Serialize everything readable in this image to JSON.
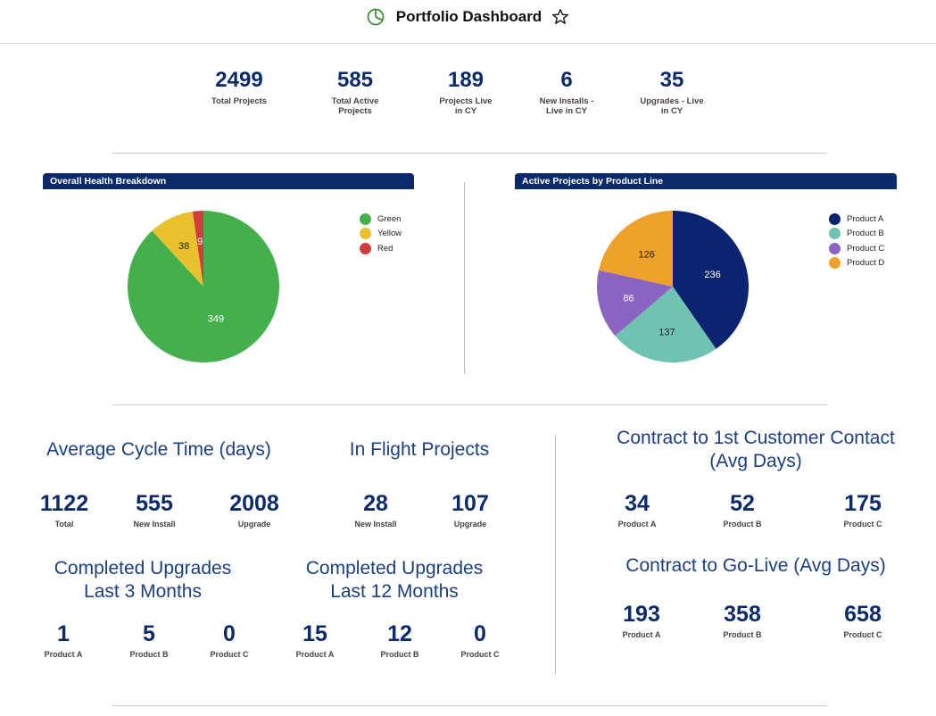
{
  "header": {
    "title": "Portfolio Dashboard"
  },
  "kpis": [
    {
      "value": "2499",
      "label": "Total Projects"
    },
    {
      "value": "585",
      "label": "Total Active Projects"
    },
    {
      "value": "189",
      "label": "Projects Live in CY"
    },
    {
      "value": "6",
      "label": "New Installs - Live in CY"
    },
    {
      "value": "35",
      "label": "Upgrades - Live in CY"
    }
  ],
  "chart_data": [
    {
      "type": "pie",
      "title": "Overall Health Breakdown",
      "categories": [
        "Green",
        "Yellow",
        "Red"
      ],
      "values": [
        349,
        38,
        9
      ],
      "colors": [
        "#44b04c",
        "#e8c22c",
        "#d13c3c"
      ],
      "legend": "right"
    },
    {
      "type": "pie",
      "title": "Active Projects by Product Line",
      "categories": [
        "Product A",
        "Product B",
        "Product C",
        "Product D"
      ],
      "values": [
        236,
        137,
        86,
        126
      ],
      "colors": [
        "#0b2470",
        "#6fc3b1",
        "#8a64c0",
        "#efa22a"
      ],
      "legend": "right"
    }
  ],
  "cycle_time": {
    "title": "Average Cycle Time (days)",
    "metrics": [
      {
        "value": "1122",
        "label": "Total"
      },
      {
        "value": "555",
        "label": "New Install"
      },
      {
        "value": "2008",
        "label": "Upgrade"
      }
    ]
  },
  "in_flight": {
    "title": "In Flight Projects",
    "metrics": [
      {
        "value": "28",
        "label": "New Install"
      },
      {
        "value": "107",
        "label": "Upgrade"
      }
    ]
  },
  "upgrades_3m": {
    "title_line1": "Completed Upgrades",
    "title_line2": "Last 3 Months",
    "metrics": [
      {
        "value": "1",
        "label": "Product A"
      },
      {
        "value": "5",
        "label": "Product B"
      },
      {
        "value": "0",
        "label": "Product C"
      }
    ]
  },
  "upgrades_12m": {
    "title_line1": "Completed Upgrades",
    "title_line2": "Last 12 Months",
    "metrics": [
      {
        "value": "15",
        "label": "Product A"
      },
      {
        "value": "12",
        "label": "Product B"
      },
      {
        "value": "0",
        "label": "Product C"
      }
    ]
  },
  "contract_contact": {
    "title_line1": "Contract to 1st Customer Contact",
    "title_line2": "(Avg Days)",
    "metrics": [
      {
        "value": "34",
        "label": "Product A"
      },
      {
        "value": "52",
        "label": "Product B"
      },
      {
        "value": "175",
        "label": "Product C"
      }
    ]
  },
  "contract_golive": {
    "title": "Contract to Go-Live (Avg Days)",
    "metrics": [
      {
        "value": "193",
        "label": "Product A"
      },
      {
        "value": "358",
        "label": "Product B"
      },
      {
        "value": "658",
        "label": "Product C"
      }
    ]
  },
  "icons": {
    "dashboard": "pie-chart-icon",
    "favorite": "star-icon"
  }
}
